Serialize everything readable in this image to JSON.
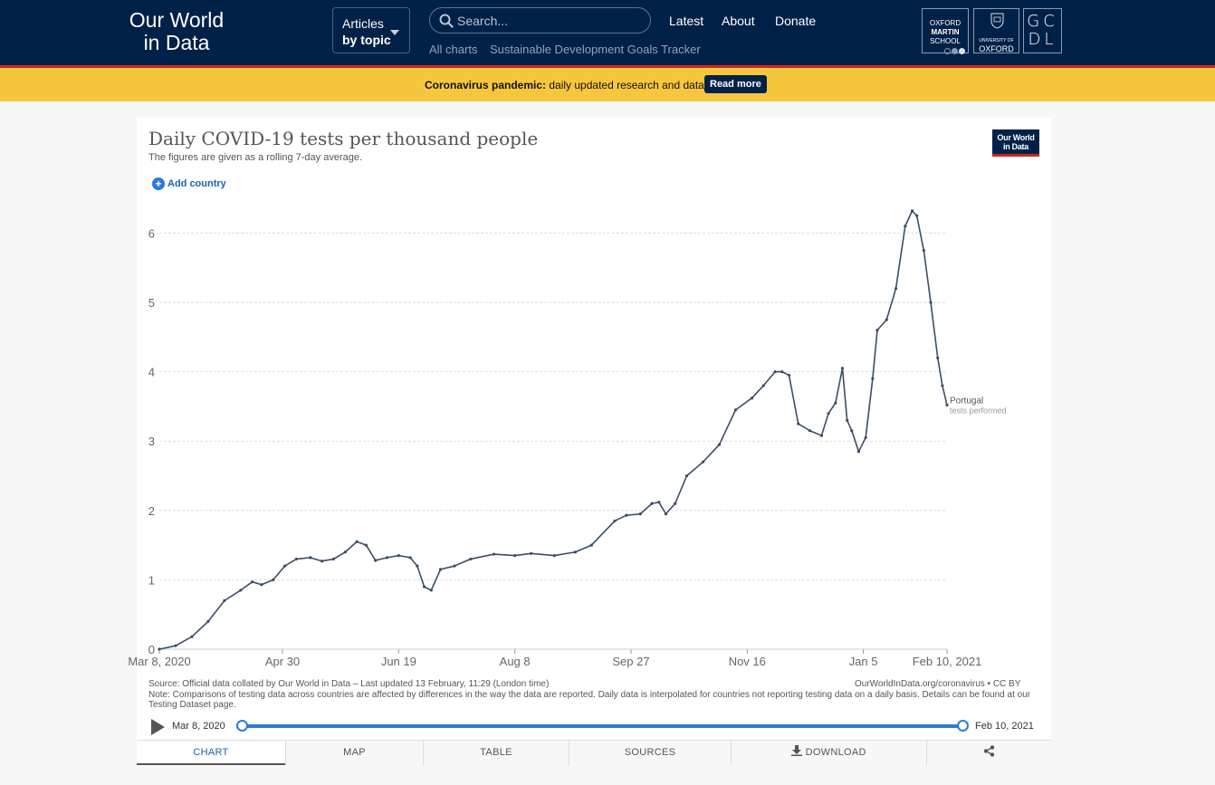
{
  "header": {
    "logo_line1": "Our World",
    "logo_line2": "in Data",
    "articles_line1": "Articles",
    "articles_line2": "by topic",
    "search_placeholder": "Search...",
    "nav": [
      "Latest",
      "About",
      "Donate"
    ],
    "subnav": [
      "All charts",
      "Sustainable Development Goals Tracker"
    ],
    "institutions": {
      "oms": [
        "OXFORD",
        "MARTIN",
        "SCHOOL"
      ],
      "oxford": [
        "UNIVERSITY OF",
        "OXFORD"
      ],
      "gcdl": [
        "G",
        "C",
        "D",
        "L"
      ]
    }
  },
  "banner": {
    "bold": "Coronavirus pandemic:",
    "text": " daily updated research and data.",
    "button": "Read more"
  },
  "chart": {
    "title": "Daily COVID-19 tests per thousand people",
    "subtitle": "The figures are given as a rolling 7-day average.",
    "add_country": "Add country",
    "badge_line1": "Our World",
    "badge_line2": "in Data",
    "series_label": "Portugal",
    "series_sublabel": "tests performed",
    "source": "Source: Official data collated by Our World in Data – Last updated 13 February, 11:29 (London time)",
    "note": "Note: Comparisons of testing data across countries are affected by differences in the way the data are reported. Daily data is interpolated for countries not reporting testing data on a daily basis. Details can be found at our Testing Dataset page.",
    "license": "OurWorldInData.org/coronavirus • CC BY",
    "timeline_start": "Mar 8, 2020",
    "timeline_end": "Feb 10, 2021"
  },
  "tabs": [
    "CHART",
    "MAP",
    "TABLE",
    "SOURCES",
    "DOWNLOAD",
    ""
  ],
  "chart_data": {
    "type": "line",
    "title": "Daily COVID-19 tests per thousand people",
    "subtitle": "The figures are given as a rolling 7-day average.",
    "xlabel": "",
    "ylabel": "",
    "y_ticks": [
      0,
      1,
      2,
      3,
      4,
      5,
      6
    ],
    "x_ticks": [
      "Mar 8, 2020",
      "Apr 30",
      "Jun 19",
      "Aug 8",
      "Sep 27",
      "Nov 16",
      "Jan 5",
      "Feb 10, 2021"
    ],
    "ylim": [
      0,
      6.5
    ],
    "grid": true,
    "series": [
      {
        "name": "Portugal",
        "color": "#3c4e66",
        "points": [
          [
            "2020-03-08",
            0.0
          ],
          [
            "2020-03-15",
            0.05
          ],
          [
            "2020-03-22",
            0.18
          ],
          [
            "2020-03-29",
            0.4
          ],
          [
            "2020-04-05",
            0.7
          ],
          [
            "2020-04-12",
            0.85
          ],
          [
            "2020-04-17",
            0.97
          ],
          [
            "2020-04-21",
            0.93
          ],
          [
            "2020-04-26",
            1.0
          ],
          [
            "2020-05-01",
            1.2
          ],
          [
            "2020-05-06",
            1.3
          ],
          [
            "2020-05-12",
            1.32
          ],
          [
            "2020-05-17",
            1.27
          ],
          [
            "2020-05-22",
            1.3
          ],
          [
            "2020-05-27",
            1.4
          ],
          [
            "2020-06-01",
            1.55
          ],
          [
            "2020-06-05",
            1.5
          ],
          [
            "2020-06-09",
            1.28
          ],
          [
            "2020-06-14",
            1.32
          ],
          [
            "2020-06-19",
            1.35
          ],
          [
            "2020-06-24",
            1.32
          ],
          [
            "2020-06-27",
            1.2
          ],
          [
            "2020-06-30",
            0.9
          ],
          [
            "2020-07-03",
            0.85
          ],
          [
            "2020-07-07",
            1.15
          ],
          [
            "2020-07-13",
            1.2
          ],
          [
            "2020-07-20",
            1.3
          ],
          [
            "2020-07-30",
            1.37
          ],
          [
            "2020-08-08",
            1.35
          ],
          [
            "2020-08-15",
            1.38
          ],
          [
            "2020-08-25",
            1.35
          ],
          [
            "2020-09-03",
            1.4
          ],
          [
            "2020-09-10",
            1.5
          ],
          [
            "2020-09-20",
            1.85
          ],
          [
            "2020-09-25",
            1.93
          ],
          [
            "2020-10-01",
            1.95
          ],
          [
            "2020-10-06",
            2.1
          ],
          [
            "2020-10-09",
            2.12
          ],
          [
            "2020-10-12",
            1.95
          ],
          [
            "2020-10-16",
            2.1
          ],
          [
            "2020-10-21",
            2.5
          ],
          [
            "2020-10-28",
            2.7
          ],
          [
            "2020-11-04",
            2.95
          ],
          [
            "2020-11-11",
            3.45
          ],
          [
            "2020-11-18",
            3.62
          ],
          [
            "2020-11-23",
            3.8
          ],
          [
            "2020-11-28",
            4.0
          ],
          [
            "2020-12-01",
            4.0
          ],
          [
            "2020-12-04",
            3.95
          ],
          [
            "2020-12-08",
            3.25
          ],
          [
            "2020-12-13",
            3.15
          ],
          [
            "2020-12-18",
            3.08
          ],
          [
            "2020-12-21",
            3.4
          ],
          [
            "2020-12-24",
            3.55
          ],
          [
            "2020-12-27",
            4.05
          ],
          [
            "2020-12-29",
            3.3
          ],
          [
            "2020-12-31",
            3.15
          ],
          [
            "2021-01-03",
            2.85
          ],
          [
            "2021-01-06",
            3.05
          ],
          [
            "2021-01-09",
            3.9
          ],
          [
            "2021-01-11",
            4.6
          ],
          [
            "2021-01-15",
            4.75
          ],
          [
            "2021-01-19",
            5.2
          ],
          [
            "2021-01-23",
            6.1
          ],
          [
            "2021-01-26",
            6.32
          ],
          [
            "2021-01-28",
            6.25
          ],
          [
            "2021-01-31",
            5.75
          ],
          [
            "2021-02-03",
            5.0
          ],
          [
            "2021-02-06",
            4.2
          ],
          [
            "2021-02-08",
            3.8
          ],
          [
            "2021-02-10",
            3.52
          ]
        ]
      }
    ]
  }
}
